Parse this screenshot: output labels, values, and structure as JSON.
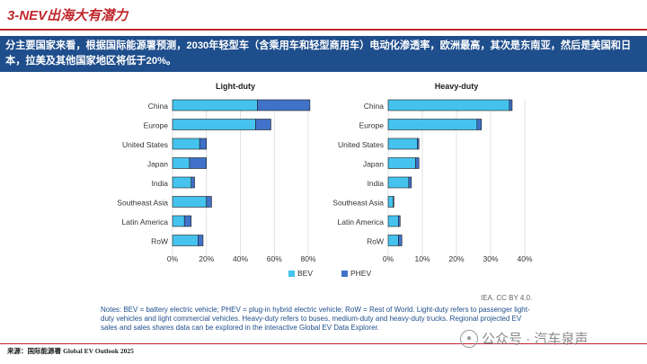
{
  "slide": {
    "title": "3-NEV出海大有潜力",
    "banner": "分主要国家来看，根据国际能源署预测，2030年轻型车（含乘用车和轻型商用车）电动化渗透率，欧洲最高，其次是东南亚，然后是美国和日本，拉美及其他国家地区将低于20%。",
    "notes": "Notes: BEV = battery electric vehicle; PHEV = plug-in hybrid electric vehicle; RoW = Rest of World. Light-duty refers to passenger light-duty vehicles and light commercial vehicles. Heavy-duty refers to buses, medium-duty and heavy-duty trucks. Regional projected EV sales and sales shares data can be explored in the interactive Global EV Data Explorer.",
    "credit": "IEA. CC BY 4.0.",
    "source_label": "来源：国际能源署",
    "source_doc": "Global EV Outlook 2025",
    "watermark": "公众号 · 汽车泉声",
    "watermark_icon": "wechat-icon"
  },
  "colors": {
    "accent_red": "#c0272d",
    "banner_blue": "#1f4e8c",
    "bev": "#45c3ee",
    "phev": "#3f72c8"
  },
  "chart_data": [
    {
      "type": "bar",
      "orientation": "horizontal",
      "stacked": true,
      "title": "Light-duty",
      "categories": [
        "China",
        "Europe",
        "United States",
        "Japan",
        "India",
        "Southeast Asia",
        "Latin America",
        "RoW"
      ],
      "series": [
        {
          "name": "BEV",
          "values": [
            50,
            49,
            16,
            10,
            11,
            20,
            7,
            15
          ]
        },
        {
          "name": "PHEV",
          "values": [
            31,
            9,
            4,
            10,
            2,
            3,
            4,
            3
          ]
        }
      ],
      "xlim": [
        0,
        80
      ],
      "xticks": [
        "0%",
        "20%",
        "40%",
        "60%",
        "80%"
      ],
      "grid": "vertical"
    },
    {
      "type": "bar",
      "orientation": "horizontal",
      "stacked": true,
      "title": "Heavy-duty",
      "categories": [
        "China",
        "Europe",
        "United States",
        "Japan",
        "India",
        "Southeast Asia",
        "Latin America",
        "RoW"
      ],
      "series": [
        {
          "name": "BEV",
          "values": [
            35.5,
            26,
            8.5,
            8,
            6,
            1.5,
            3,
            3
          ]
        },
        {
          "name": "PHEV",
          "values": [
            0.8,
            1.3,
            0.5,
            1,
            0.8,
            0.1,
            0.5,
            1
          ]
        }
      ],
      "xlim": [
        0,
        40
      ],
      "xticks": [
        "0%",
        "10%",
        "20%",
        "30%",
        "40%"
      ],
      "grid": "vertical"
    }
  ],
  "legend": [
    "BEV",
    "PHEV"
  ]
}
